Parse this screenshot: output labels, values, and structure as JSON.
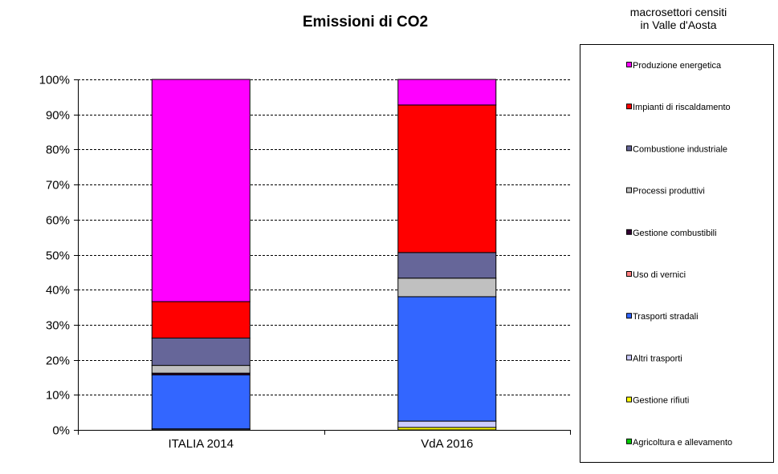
{
  "chart_data": {
    "type": "bar",
    "stacked": "percent",
    "title": "Emissioni di CO2",
    "legend_title": "macrosettori censiti\nin Valle d'Aosta",
    "legend_placement": "right",
    "grid": true,
    "ylim": [
      0,
      100
    ],
    "yticks": [
      "0%",
      "10%",
      "20%",
      "30%",
      "40%",
      "50%",
      "60%",
      "70%",
      "80%",
      "90%",
      "100%"
    ],
    "categories": [
      "ITALIA 2014",
      "VdA 2016"
    ],
    "series": [
      {
        "name": "Agricoltura e allevamento",
        "color": "#00CC00",
        "values": [
          0.0,
          0.0
        ]
      },
      {
        "name": "Gestione rifiuti",
        "color": "#FFFF00",
        "values": [
          0.0,
          0.7
        ]
      },
      {
        "name": "Altri trasporti",
        "color": "#CCCCFF",
        "values": [
          0.3,
          1.8
        ]
      },
      {
        "name": "Trasporti stradali",
        "color": "#3366FF",
        "values": [
          15.4,
          35.5
        ]
      },
      {
        "name": "Uso di vernici",
        "color": "#FF8080",
        "values": [
          0.0,
          0.0
        ]
      },
      {
        "name": "Gestione combustibili",
        "color": "#330033",
        "values": [
          0.5,
          0.0
        ]
      },
      {
        "name": "Processi produttivi",
        "color": "#C0C0C0",
        "values": [
          2.2,
          5.3
        ]
      },
      {
        "name": "Combustione industriale",
        "color": "#666699",
        "values": [
          7.8,
          7.3
        ]
      },
      {
        "name": "Impianti di riscaldamento",
        "color": "#FF0000",
        "values": [
          10.4,
          42.1
        ]
      },
      {
        "name": "Produzione energetica",
        "color": "#FF00FF",
        "values": [
          63.4,
          7.3
        ]
      }
    ]
  }
}
